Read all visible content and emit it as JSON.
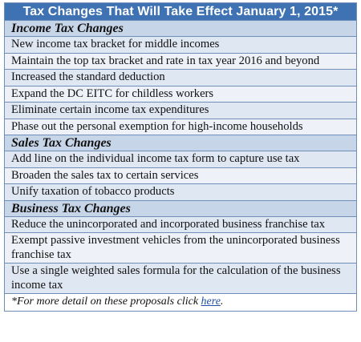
{
  "title": "Tax Changes That Will Take Effect January 1, 2015*",
  "sections": [
    {
      "heading": "Income Tax Changes",
      "items": [
        "New income tax bracket for middle incomes",
        "Maintain the top tax bracket and rate in tax year 2016 and beyond",
        "Increased the standard deduction",
        "Expand the DC EITC for childless workers",
        "Eliminate certain income tax expenditures",
        "Phase out the personal exemption for high-income households"
      ]
    },
    {
      "heading": "Sales Tax Changes",
      "items": [
        "Add line on the individual income tax form to capture use tax",
        "Broaden the sales tax to certain services",
        "Unify taxation of tobacco products"
      ]
    },
    {
      "heading": "Business Tax Changes",
      "items": [
        "Reduce the unincorporated and incorporated business franchise tax",
        "Exempt passive investment vehicles from the unincorporated business franchise tax",
        "Use a single weighted sales formula for the calculation of the business income tax"
      ]
    }
  ],
  "footnote": {
    "prefix": "*For more detail on these proposals click ",
    "link_text": "here",
    "suffix": "."
  }
}
